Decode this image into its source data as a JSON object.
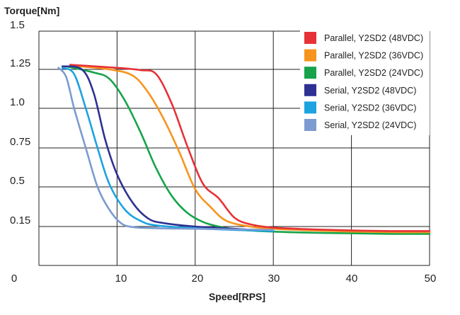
{
  "chart_data": {
    "type": "line",
    "ylabel": "Torque[Nm]",
    "xlabel": "Speed[RPS]",
    "x_ticks": [
      "0",
      "10",
      "20",
      "30",
      "40",
      "50"
    ],
    "y_ticks": [
      "1.5",
      "1.25",
      "1.0",
      "0.75",
      "0.5",
      "0.15"
    ],
    "xlim": [
      0,
      50
    ],
    "legend_position": "top-right",
    "grid": true,
    "series": [
      {
        "name": "Parallel, Y2SD2 (48VDC)",
        "color": "#e63237",
        "points": [
          [
            4,
            1.28
          ],
          [
            10,
            1.26
          ],
          [
            13,
            1.245
          ],
          [
            15,
            1.22
          ],
          [
            17,
            1.03
          ],
          [
            19,
            0.76
          ],
          [
            21,
            0.52
          ],
          [
            23,
            0.4
          ],
          [
            25,
            0.23
          ],
          [
            27,
            0.17
          ],
          [
            30,
            0.14
          ],
          [
            35,
            0.125
          ],
          [
            40,
            0.115
          ],
          [
            45,
            0.11
          ],
          [
            50,
            0.11
          ]
        ]
      },
      {
        "name": "Parallel, Y2SD2 (36VDC)",
        "color": "#f7941d",
        "points": [
          [
            4,
            1.275
          ],
          [
            9,
            1.25
          ],
          [
            12,
            1.21
          ],
          [
            14,
            1.1
          ],
          [
            16,
            0.93
          ],
          [
            18,
            0.72
          ],
          [
            20,
            0.48
          ],
          [
            22,
            0.32
          ],
          [
            24,
            0.2
          ],
          [
            27,
            0.15
          ],
          [
            30,
            0.13
          ],
          [
            35,
            0.115
          ],
          [
            40,
            0.105
          ],
          [
            45,
            0.1
          ],
          [
            50,
            0.1
          ]
        ]
      },
      {
        "name": "Parallel, Y2SD2 (24VDC)",
        "color": "#16a34a",
        "points": [
          [
            3.5,
            1.27
          ],
          [
            7,
            1.23
          ],
          [
            9,
            1.19
          ],
          [
            11,
            1.05
          ],
          [
            13,
            0.85
          ],
          [
            15,
            0.62
          ],
          [
            17,
            0.42
          ],
          [
            19,
            0.27
          ],
          [
            21,
            0.19
          ],
          [
            23,
            0.15
          ],
          [
            26,
            0.12
          ],
          [
            30,
            0.105
          ],
          [
            35,
            0.095
          ],
          [
            40,
            0.09
          ],
          [
            45,
            0.085
          ],
          [
            50,
            0.085
          ]
        ]
      },
      {
        "name": "Serial, Y2SD2 (48VDC)",
        "color": "#2e3192",
        "points": [
          [
            3,
            1.27
          ],
          [
            5.5,
            1.25
          ],
          [
            7,
            1.1
          ],
          [
            8.5,
            0.8
          ],
          [
            10,
            0.58
          ],
          [
            12,
            0.36
          ],
          [
            14,
            0.22
          ],
          [
            16,
            0.18
          ],
          [
            20,
            0.15
          ],
          [
            25,
            0.13
          ],
          [
            30,
            0.11
          ]
        ]
      },
      {
        "name": "Serial, Y2SD2 (36VDC)",
        "color": "#1ca3e0",
        "points": [
          [
            3,
            1.26
          ],
          [
            4.5,
            1.22
          ],
          [
            6,
            1.0
          ],
          [
            7.5,
            0.75
          ],
          [
            9,
            0.52
          ],
          [
            11,
            0.3
          ],
          [
            13,
            0.2
          ],
          [
            15,
            0.16
          ],
          [
            20,
            0.135
          ],
          [
            25,
            0.12
          ],
          [
            30,
            0.11
          ]
        ]
      },
      {
        "name": "Serial, Y2SD2 (24VDC)",
        "color": "#7b9bd1",
        "points": [
          [
            2.5,
            1.26
          ],
          [
            3.5,
            1.2
          ],
          [
            4.5,
            1.0
          ],
          [
            6,
            0.75
          ],
          [
            7.5,
            0.5
          ],
          [
            9,
            0.3
          ],
          [
            10.5,
            0.18
          ],
          [
            12,
            0.145
          ],
          [
            15,
            0.135
          ],
          [
            20,
            0.13
          ],
          [
            25,
            0.125
          ],
          [
            30,
            0.12
          ]
        ]
      }
    ]
  }
}
